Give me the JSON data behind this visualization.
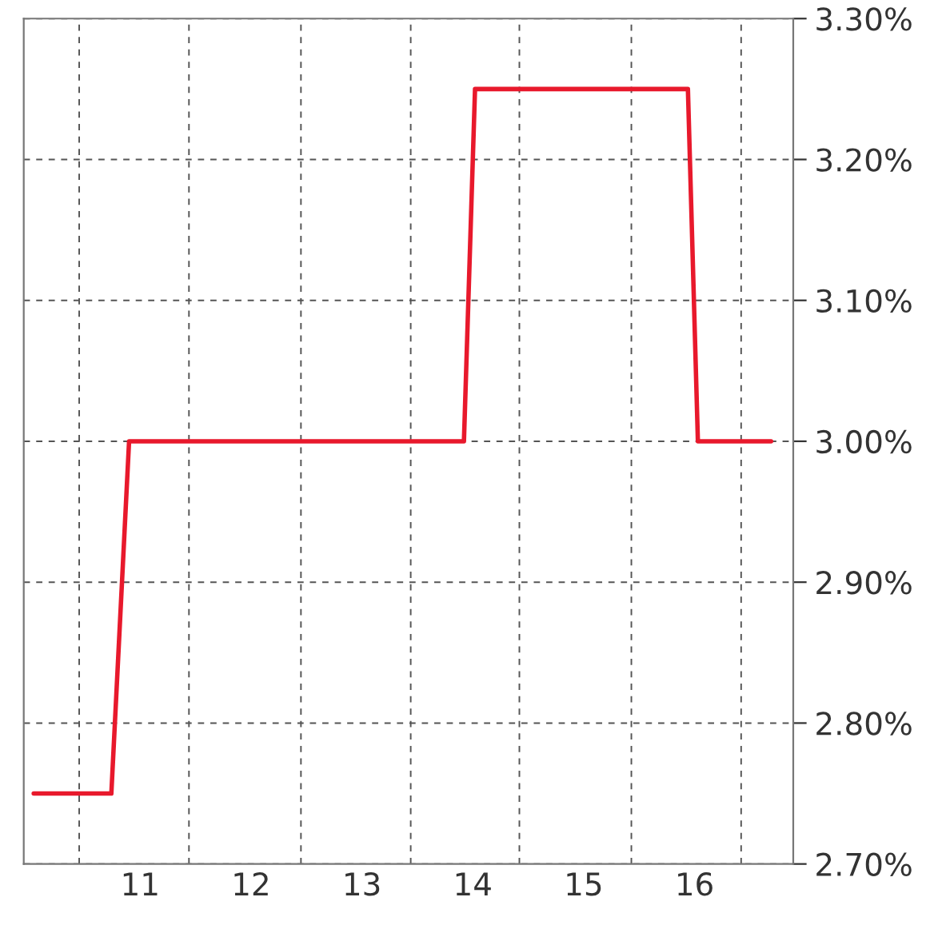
{
  "chart_data": {
    "type": "line",
    "x": [
      10.04,
      10.74,
      10.9,
      13.92,
      14.02,
      15.94,
      16.03,
      16.69
    ],
    "series": [
      {
        "color": "#e8192c",
        "values": [
          2.75,
          2.75,
          3.0,
          3.0,
          3.25,
          3.25,
          3.0,
          3.0
        ]
      }
    ],
    "xlim": [
      9.95,
      16.89
    ],
    "xticks": [
      {
        "value": 10.45,
        "label": null
      },
      {
        "value": 11,
        "label": "11"
      },
      {
        "value": 11.44,
        "label": null
      },
      {
        "value": 12,
        "label": "12"
      },
      {
        "value": 12.45,
        "label": null
      },
      {
        "value": 13,
        "label": "13"
      },
      {
        "value": 13.44,
        "label": null
      },
      {
        "value": 14,
        "label": "14"
      },
      {
        "value": 14.42,
        "label": null
      },
      {
        "value": 15,
        "label": "15"
      },
      {
        "value": 15.43,
        "label": null
      },
      {
        "value": 16,
        "label": "16"
      },
      {
        "value": 16.42,
        "label": null
      }
    ],
    "ylim": [
      2.7,
      3.3
    ],
    "yticks": [
      {
        "value": 2.7,
        "label": "2.70%"
      },
      {
        "value": 2.8,
        "label": "2.80%"
      },
      {
        "value": 2.9,
        "label": "2.90%"
      },
      {
        "value": 3.0,
        "label": "3.00%"
      },
      {
        "value": 3.1,
        "label": "3.10%"
      },
      {
        "value": 3.2,
        "label": "3.20%"
      },
      {
        "value": 3.3,
        "label": "3.30%"
      }
    ],
    "grid": true,
    "line_style": "solid",
    "marker": "none",
    "legend": false
  }
}
